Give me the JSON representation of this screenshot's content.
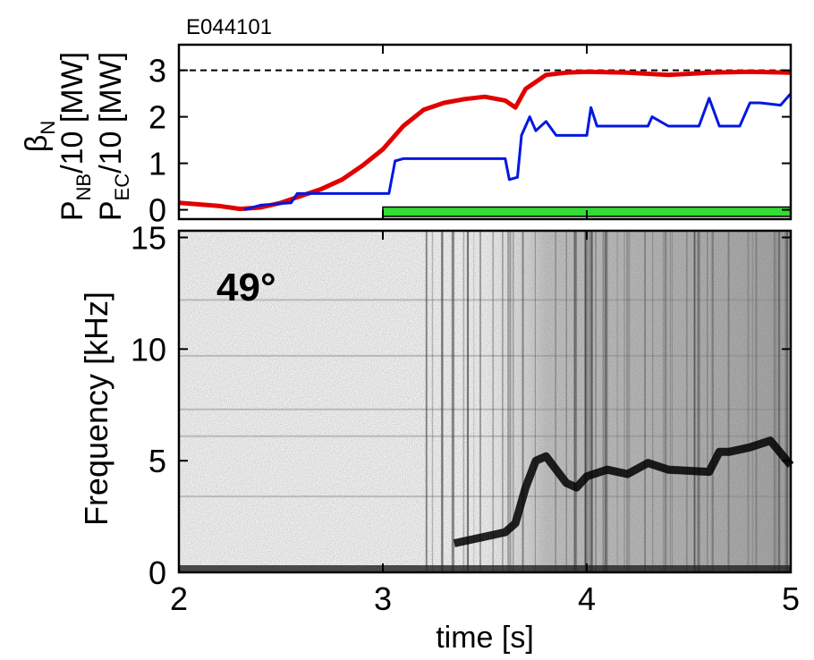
{
  "chart_data": [
    {
      "type": "line",
      "title": "E044101",
      "ylabel": [
        {
          "main": "β",
          "sub": "N",
          "rest": ""
        },
        {
          "main": "P",
          "sub": "NB",
          "rest": "/10 [MW]"
        },
        {
          "main": "P",
          "sub": "EC",
          "rest": "/10 [MW]"
        }
      ],
      "xlim": [
        2,
        5
      ],
      "ylim": [
        -0.2,
        3.55
      ],
      "xticks": [
        2,
        3,
        4,
        5
      ],
      "yticks": [
        0,
        1,
        2,
        3
      ],
      "hline": 3,
      "series": [
        {
          "color": "#e00000",
          "style": "line",
          "x": [
            2.0,
            2.2,
            2.3,
            2.4,
            2.5,
            2.6,
            2.7,
            2.8,
            2.9,
            3.0,
            3.1,
            3.2,
            3.3,
            3.4,
            3.5,
            3.6,
            3.65,
            3.7,
            3.8,
            3.9,
            4.0,
            4.2,
            4.4,
            4.6,
            4.8,
            5.0
          ],
          "values": [
            0.15,
            0.08,
            0.02,
            0.05,
            0.15,
            0.3,
            0.45,
            0.65,
            0.95,
            1.3,
            1.8,
            2.15,
            2.3,
            2.38,
            2.43,
            2.35,
            2.2,
            2.6,
            2.9,
            2.95,
            2.97,
            2.95,
            2.9,
            2.95,
            2.97,
            2.95
          ]
        },
        {
          "color": "#0018e0",
          "style": "line",
          "x": [
            2.32,
            2.4,
            2.55,
            2.58,
            3.03,
            3.06,
            3.1,
            3.6,
            3.62,
            3.66,
            3.68,
            3.72,
            3.75,
            3.8,
            3.85,
            4.0,
            4.02,
            4.05,
            4.3,
            4.32,
            4.4,
            4.55,
            4.6,
            4.65,
            4.75,
            4.8,
            4.85,
            4.95,
            5.0
          ],
          "values": [
            0.0,
            0.1,
            0.15,
            0.35,
            0.35,
            1.05,
            1.1,
            1.1,
            0.65,
            0.7,
            1.6,
            2.0,
            1.7,
            1.9,
            1.6,
            1.6,
            2.2,
            1.8,
            1.8,
            2.0,
            1.8,
            1.8,
            2.4,
            1.8,
            1.8,
            2.3,
            2.3,
            2.25,
            2.5
          ]
        },
        {
          "color": "#33dd33",
          "style": "area",
          "x": [
            3.0,
            5.0
          ],
          "values": [
            0.06,
            0.06
          ]
        }
      ]
    },
    {
      "type": "spectrogram",
      "ylabel": "Frequency [kHz]",
      "xlabel": "time [s]",
      "annotation": {
        "text": "49°",
        "color": "#ff1493"
      },
      "xlim": [
        2,
        5
      ],
      "ylim": [
        0,
        15.3
      ],
      "xticks": [
        2,
        3,
        4,
        5
      ],
      "yticks": [
        0,
        5,
        10,
        15
      ],
      "series": [
        {
          "color": "#000000",
          "x": [
            3.35,
            3.5,
            3.6,
            3.65,
            3.7,
            3.75,
            3.8,
            3.85,
            3.9,
            3.95,
            4.0,
            4.1,
            4.2,
            4.3,
            4.4,
            4.6,
            4.65,
            4.7,
            4.8,
            4.9,
            5.0
          ],
          "values": [
            1.3,
            1.6,
            1.8,
            2.2,
            3.8,
            5.0,
            5.2,
            4.6,
            4.0,
            3.8,
            4.3,
            4.6,
            4.4,
            4.9,
            4.6,
            4.5,
            5.4,
            5.4,
            5.6,
            5.9,
            4.8
          ]
        }
      ]
    }
  ]
}
